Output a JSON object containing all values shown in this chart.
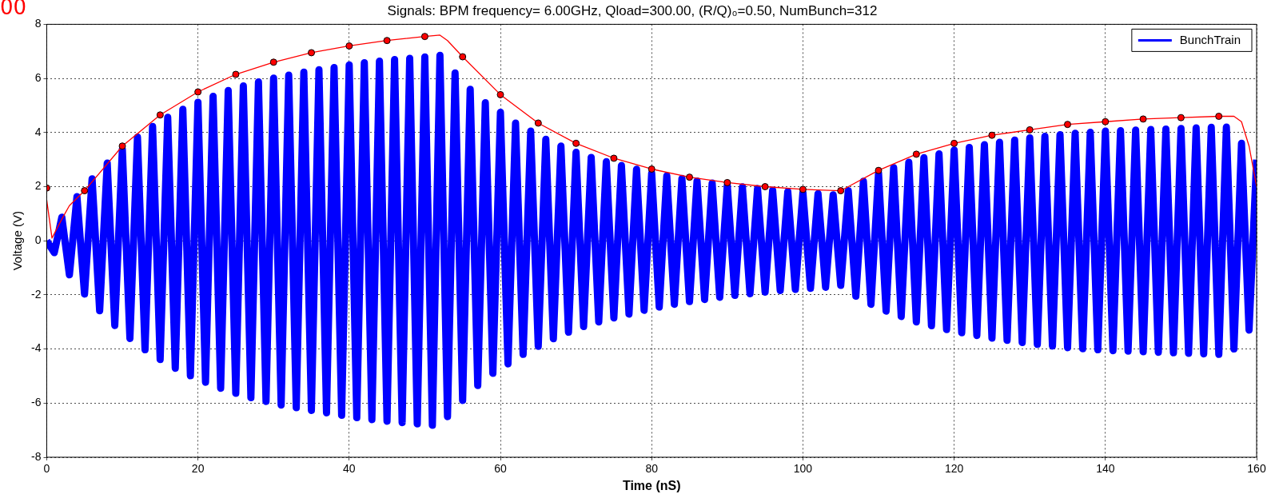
{
  "chart_data": {
    "type": "line",
    "title": "Signals: BPM frequency= 6.00GHz, Qload=300.00, (R/Q)₀=0.50, NumBunch=312",
    "xlabel": "Time (nS)",
    "ylabel": "Voltage (V)",
    "annotations": [
      "00"
    ],
    "xlim": [
      0,
      160
    ],
    "xticks": [
      0,
      20,
      40,
      60,
      80,
      100,
      120,
      140,
      160
    ],
    "ylim": [
      -8,
      8
    ],
    "yticks": [
      -8,
      -6,
      -4,
      -2,
      0,
      2,
      4,
      6,
      8
    ],
    "grid": true,
    "legend": "top right",
    "line_style": "solid",
    "series": [
      {
        "name": "BunchTrain",
        "color": "#0000ff",
        "x": [
          0,
          1,
          2,
          3,
          4,
          5,
          6,
          7,
          8,
          9,
          10,
          11,
          12,
          13,
          14,
          15,
          16,
          17,
          18,
          19,
          20,
          21,
          22,
          23,
          24,
          25,
          26,
          27,
          28,
          29,
          30,
          31,
          32,
          33,
          34,
          35,
          36,
          37,
          38,
          39,
          40,
          41,
          42,
          43,
          44,
          45,
          46,
          47,
          48,
          49,
          50,
          51,
          52,
          53,
          54,
          55,
          56,
          57,
          58,
          59,
          60,
          61,
          62,
          63,
          64,
          65,
          66,
          67,
          68,
          69,
          70,
          71,
          72,
          73,
          74,
          75,
          76,
          77,
          78,
          79,
          80,
          81,
          82,
          83,
          84,
          85,
          86,
          87,
          88,
          89,
          90,
          91,
          92,
          93,
          94,
          95,
          96,
          97,
          98,
          99,
          100,
          101,
          102,
          103,
          104,
          105,
          106,
          107,
          108,
          109,
          110,
          111,
          112,
          113,
          114,
          115,
          116,
          117,
          118,
          119,
          120,
          121,
          122,
          123,
          124,
          125,
          126,
          127,
          128,
          129,
          130,
          131,
          132,
          133,
          134,
          135,
          136,
          137,
          138,
          139,
          140,
          141,
          142,
          143,
          144,
          145,
          146,
          147,
          148,
          149,
          150,
          151,
          152,
          153,
          154,
          155,
          156,
          157,
          158,
          159,
          160
        ],
        "values": [
          0,
          -0.44,
          0.87,
          -1.26,
          1.63,
          -1.97,
          2.29,
          -2.59,
          2.87,
          -3.13,
          3.38,
          -3.61,
          3.83,
          -4.03,
          4.22,
          -4.39,
          4.56,
          -4.71,
          4.86,
          -4.99,
          5.12,
          -5.23,
          5.34,
          -5.45,
          5.55,
          -5.64,
          5.72,
          -5.8,
          5.87,
          -5.94,
          6.01,
          -6.07,
          6.12,
          -6.17,
          6.23,
          -6.27,
          6.32,
          -6.36,
          6.4,
          -6.45,
          6.5,
          -6.54,
          6.58,
          -6.61,
          6.64,
          -6.67,
          6.7,
          -6.72,
          6.74,
          -6.77,
          6.79,
          -6.82,
          6.85,
          -6.5,
          6.2,
          -5.9,
          5.6,
          -5.35,
          5.1,
          -4.9,
          4.75,
          -4.55,
          4.35,
          -4.2,
          4.05,
          -3.9,
          3.75,
          -3.62,
          3.5,
          -3.38,
          3.27,
          -3.17,
          3.08,
          -3.0,
          2.92,
          -2.85,
          2.78,
          -2.71,
          2.64,
          -2.57,
          2.5,
          -2.45,
          2.4,
          -2.35,
          2.3,
          -2.25,
          2.21,
          -2.17,
          2.13,
          -2.09,
          2.05,
          -2.02,
          1.99,
          -1.96,
          1.93,
          -1.9,
          1.87,
          -1.84,
          1.82,
          -1.8,
          1.78,
          -1.76,
          1.74,
          -1.72,
          1.7,
          -1.65,
          1.85,
          -2.05,
          2.2,
          -2.35,
          2.5,
          -2.6,
          2.7,
          -2.8,
          2.9,
          -3.0,
          3.07,
          -3.14,
          3.21,
          -3.28,
          3.35,
          -3.4,
          3.45,
          -3.5,
          3.55,
          -3.6,
          3.64,
          -3.68,
          3.72,
          -3.76,
          3.8,
          -3.83,
          3.86,
          -3.89,
          3.92,
          -3.95,
          3.97,
          -3.99,
          4.01,
          -4.03,
          4.05,
          -4.06,
          4.07,
          -4.08,
          4.09,
          -4.1,
          4.11,
          -4.12,
          4.13,
          -4.14,
          4.15,
          -4.16,
          4.17,
          -4.18,
          4.19,
          -4.2,
          4.2,
          -4.0,
          3.6,
          -3.3,
          3.0
        ]
      },
      {
        "color": "#ff0000",
        "x": [
          0,
          0.7,
          2,
          3,
          5,
          10,
          15,
          20,
          25,
          30,
          35,
          40,
          45,
          50,
          52,
          53,
          55,
          60,
          65,
          70,
          75,
          80,
          85,
          90,
          95,
          100,
          105,
          106,
          110,
          115,
          120,
          125,
          130,
          135,
          140,
          145,
          150,
          155,
          157,
          158,
          159,
          160
        ],
        "values": [
          1.5,
          0.1,
          0.8,
          1.3,
          1.85,
          3.5,
          4.65,
          5.5,
          6.15,
          6.6,
          6.95,
          7.2,
          7.4,
          7.55,
          7.6,
          7.4,
          6.8,
          5.4,
          4.35,
          3.6,
          3.05,
          2.65,
          2.35,
          2.15,
          2.0,
          1.9,
          1.85,
          2.0,
          2.6,
          3.2,
          3.6,
          3.9,
          4.1,
          4.3,
          4.4,
          4.5,
          4.55,
          4.6,
          4.6,
          4.4,
          3.5,
          2.0
        ]
      },
      {
        "type": "scatter",
        "marker": "circle",
        "color": "#ff0000",
        "x": [
          0,
          5,
          10,
          15,
          20,
          25,
          30,
          35,
          40,
          45,
          50,
          55,
          60,
          65,
          70,
          75,
          80,
          85,
          90,
          95,
          100,
          105,
          110,
          115,
          120,
          125,
          130,
          135,
          140,
          145,
          150,
          155
        ],
        "values": [
          1.95,
          1.85,
          3.5,
          4.65,
          5.5,
          6.15,
          6.6,
          6.95,
          7.2,
          7.4,
          7.55,
          6.8,
          5.4,
          4.35,
          3.6,
          3.05,
          2.65,
          2.35,
          2.15,
          2.0,
          1.9,
          1.85,
          2.6,
          3.2,
          3.6,
          3.9,
          4.1,
          4.3,
          4.4,
          4.5,
          4.55,
          4.6
        ]
      }
    ]
  }
}
